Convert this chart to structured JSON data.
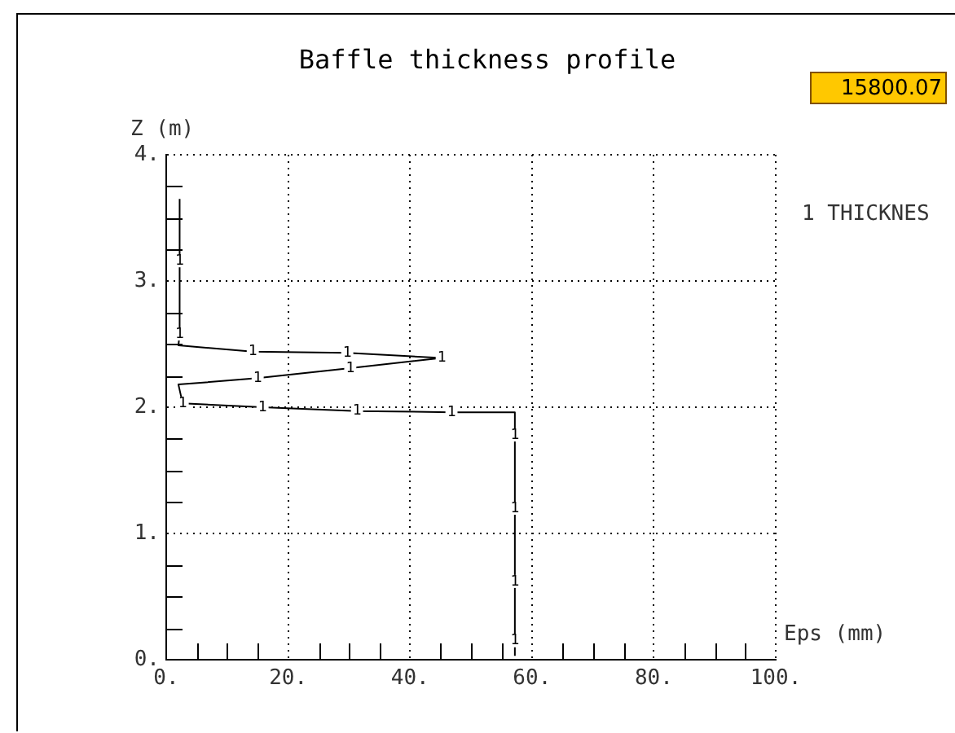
{
  "chart_data": {
    "type": "line",
    "title": "Baffle thickness profile",
    "xlabel": "Eps (mm)",
    "ylabel": "Z (m)",
    "annotations": [
      "15800.07",
      {
        "text": "1",
        "x": 57.2,
        "y": 0.15
      },
      {
        "text": "1",
        "x": 57.2,
        "y": 0.62
      },
      {
        "text": "1",
        "x": 57.2,
        "y": 1.2
      },
      {
        "text": "1",
        "x": 57.2,
        "y": 1.78
      },
      {
        "text": "1",
        "x": 46.8,
        "y": 1.96
      },
      {
        "text": "1",
        "x": 31.3,
        "y": 1.97
      },
      {
        "text": "1",
        "x": 15.8,
        "y": 2.0
      },
      {
        "text": "1",
        "x": 2.7,
        "y": 2.03
      },
      {
        "text": "1",
        "x": 15.0,
        "y": 2.23
      },
      {
        "text": "1",
        "x": 30.2,
        "y": 2.31
      },
      {
        "text": "1",
        "x": 45.2,
        "y": 2.39
      },
      {
        "text": "1",
        "x": 29.7,
        "y": 2.43
      },
      {
        "text": "1",
        "x": 14.2,
        "y": 2.44
      },
      {
        "text": "1",
        "x": 2.2,
        "y": 2.58
      },
      {
        "text": "1",
        "x": 2.2,
        "y": 3.16
      }
    ],
    "xlim": [
      0,
      100
    ],
    "ylim": [
      0,
      4
    ],
    "xticks": [
      {
        "value": 0,
        "label": "0."
      },
      {
        "value": 5,
        "label": null
      },
      {
        "value": 10,
        "label": null
      },
      {
        "value": 15,
        "label": null
      },
      {
        "value": 20,
        "label": "20."
      },
      {
        "value": 25,
        "label": null
      },
      {
        "value": 30,
        "label": null
      },
      {
        "value": 35,
        "label": null
      },
      {
        "value": 40,
        "label": "40."
      },
      {
        "value": 45,
        "label": null
      },
      {
        "value": 50,
        "label": null
      },
      {
        "value": 55,
        "label": null
      },
      {
        "value": 60,
        "label": "60."
      },
      {
        "value": 65,
        "label": null
      },
      {
        "value": 70,
        "label": null
      },
      {
        "value": 75,
        "label": null
      },
      {
        "value": 80,
        "label": "80."
      },
      {
        "value": 85,
        "label": null
      },
      {
        "value": 90,
        "label": null
      },
      {
        "value": 95,
        "label": null
      },
      {
        "value": 100,
        "label": "100."
      }
    ],
    "yticks": [
      {
        "value": 0,
        "label": "0."
      },
      {
        "value": 0.25,
        "label": null
      },
      {
        "value": 0.5,
        "label": null
      },
      {
        "value": 0.75,
        "label": null
      },
      {
        "value": 1,
        "label": "1."
      },
      {
        "value": 1.25,
        "label": null
      },
      {
        "value": 1.5,
        "label": null
      },
      {
        "value": 1.75,
        "label": null
      },
      {
        "value": 2,
        "label": "2."
      },
      {
        "value": 2.25,
        "label": null
      },
      {
        "value": 2.5,
        "label": null
      },
      {
        "value": 2.75,
        "label": null
      },
      {
        "value": 3,
        "label": "3."
      },
      {
        "value": 3.25,
        "label": null
      },
      {
        "value": 3.5,
        "label": null
      },
      {
        "value": 3.75,
        "label": null
      },
      {
        "value": 4,
        "label": "4."
      }
    ],
    "grid": true,
    "legend": "right",
    "line_style": "solid",
    "series": [
      {
        "name": "1 THICKNES",
        "color": "#000000",
        "x": [
          57.2,
          57.2,
          57.2,
          57.2,
          57.2,
          57.2,
          46.8,
          31.3,
          15.8,
          2.7,
          2.0,
          15.0,
          30.2,
          45.2,
          29.7,
          14.2,
          2.0,
          2.2,
          2.2,
          2.2
        ],
        "values": [
          0.03,
          0.15,
          0.62,
          1.2,
          1.78,
          1.96,
          1.96,
          1.97,
          2.0,
          2.03,
          2.18,
          2.23,
          2.31,
          2.39,
          2.43,
          2.44,
          2.49,
          2.58,
          3.16,
          3.65
        ]
      }
    ]
  }
}
